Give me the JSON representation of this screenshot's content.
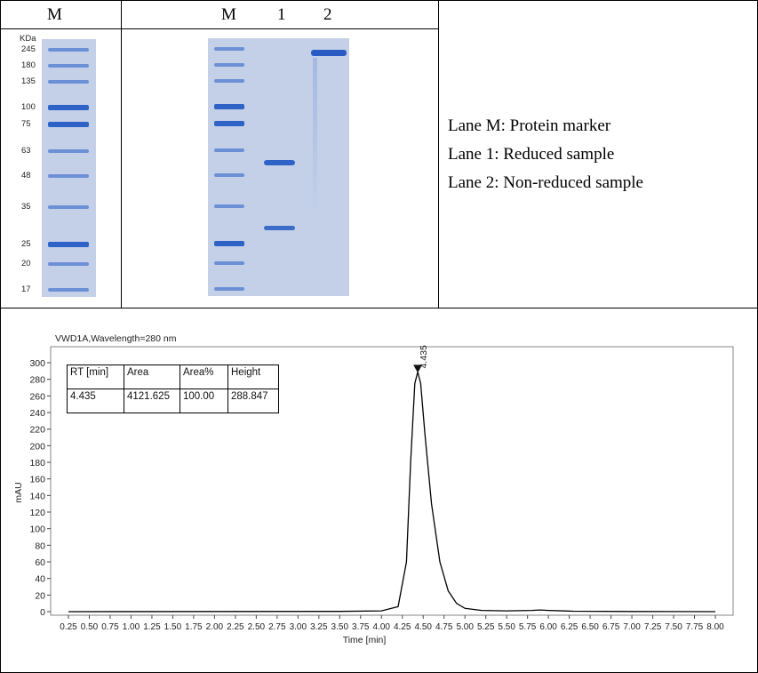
{
  "gel_panel": {
    "marker_lane_header": "M",
    "lane_headers": [
      "M",
      "1",
      "2"
    ],
    "kda_label": "KDa",
    "marker_kda": [
      "245",
      "180",
      "135",
      "100",
      "75",
      "63",
      "48",
      "35",
      "25",
      "20",
      "17"
    ],
    "legend": [
      "Lane M: Protein marker",
      "Lane 1: Reduced sample",
      "Lane 2: Non-reduced sample"
    ],
    "band_color": "#2f62c6",
    "gel_color": "#c3d0e8"
  },
  "chart_data": {
    "type": "line",
    "title": "VWD1A,Wavelength=280 nm",
    "xlabel": "Time [min]",
    "ylabel": "mAU",
    "xlim": [
      0.25,
      8.0
    ],
    "ylim": [
      0,
      300
    ],
    "x_ticks": [
      "0.25",
      "0.50",
      "0.75",
      "1.00",
      "1.25",
      "1.50",
      "1.75",
      "2.00",
      "2.25",
      "2.50",
      "2.75",
      "3.00",
      "3.25",
      "3.50",
      "3.75",
      "4.00",
      "4.25",
      "4.50",
      "4.75",
      "5.00",
      "5.25",
      "5.50",
      "5.75",
      "6.00",
      "6.25",
      "6.50",
      "6.75",
      "7.00",
      "7.25",
      "7.50",
      "7.75",
      "8.00"
    ],
    "y_ticks": [
      "0",
      "20",
      "40",
      "60",
      "80",
      "100",
      "120",
      "140",
      "160",
      "180",
      "200",
      "220",
      "240",
      "260",
      "280",
      "300"
    ],
    "peak_label": "4.435",
    "series": [
      {
        "x": [
          0.25,
          3.5,
          4.0,
          4.2,
          4.3,
          4.35,
          4.4,
          4.435,
          4.47,
          4.52,
          4.6,
          4.7,
          4.8,
          4.9,
          5.0,
          5.2,
          5.5,
          5.8,
          5.9,
          6.0,
          6.3,
          7.0,
          8.0
        ],
        "y": [
          0,
          0.3,
          1,
          6,
          60,
          180,
          275,
          288.847,
          275,
          215,
          130,
          60,
          25,
          10,
          4,
          1.5,
          1,
          1.5,
          2,
          1.5,
          0.5,
          0.2,
          0
        ]
      }
    ],
    "table": {
      "columns": [
        "RT [min]",
        "Area",
        "Area%",
        "Height"
      ],
      "rows": [
        [
          "4.435",
          "4121.625",
          "100.00",
          "288.847"
        ]
      ]
    }
  }
}
